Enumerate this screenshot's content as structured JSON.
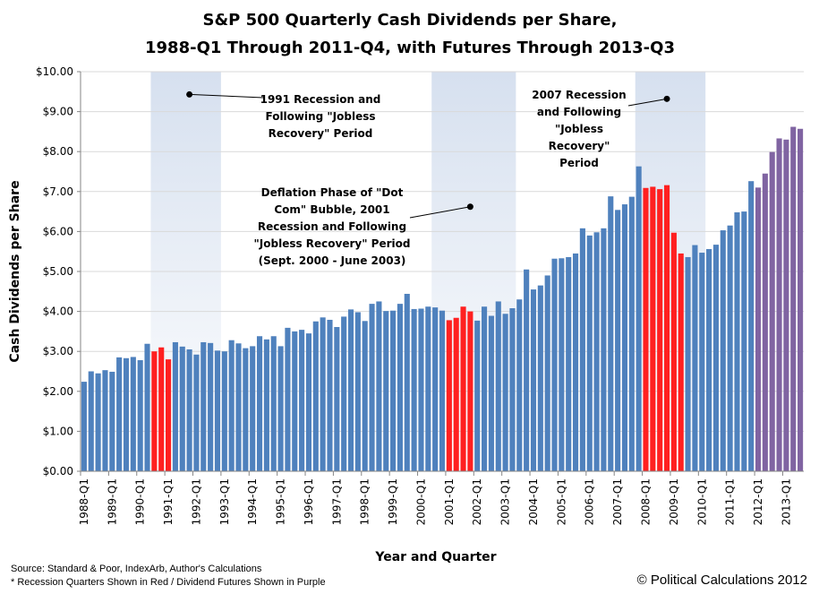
{
  "chart_data": {
    "type": "bar",
    "title": "S&P 500 Quarterly Cash Dividends per Share,",
    "subtitle": "1988-Q1 Through 2011-Q4, with Futures Through 2013-Q3",
    "xlabel": "Year and Quarter",
    "ylabel": "Cash Dividends per Share",
    "ylim": [
      0,
      10
    ],
    "grid": true,
    "yticks": [
      "$0.00",
      "$1.00",
      "$2.00",
      "$3.00",
      "$4.00",
      "$5.00",
      "$6.00",
      "$7.00",
      "$8.00",
      "$9.00",
      "$10.00"
    ],
    "xtick_labels": [
      "1988-Q1",
      "1989-Q1",
      "1990-Q1",
      "1991-Q1",
      "1992-Q1",
      "1993-Q1",
      "1994-Q1",
      "1995-Q1",
      "1996-Q1",
      "1997-Q1",
      "1998-Q1",
      "1999-Q1",
      "2000-Q1",
      "2001-Q1",
      "2002-Q1",
      "2003-Q1",
      "2004-Q1",
      "2005-Q1",
      "2006-Q1",
      "2007-Q1",
      "2008-Q1",
      "2009-Q1",
      "2010-Q1",
      "2011-Q1",
      "2012-Q1",
      "2013-Q1"
    ],
    "start_quarter": "1988-Q1",
    "values": [
      2.24,
      2.5,
      2.45,
      2.53,
      2.49,
      2.85,
      2.83,
      2.86,
      2.78,
      3.19,
      3.0,
      3.1,
      2.8,
      3.23,
      3.12,
      3.05,
      2.92,
      3.23,
      3.21,
      3.02,
      3.0,
      3.28,
      3.2,
      3.08,
      3.13,
      3.38,
      3.3,
      3.38,
      3.13,
      3.59,
      3.5,
      3.54,
      3.45,
      3.75,
      3.85,
      3.79,
      3.61,
      3.87,
      4.05,
      3.98,
      3.76,
      4.19,
      4.25,
      4.01,
      4.02,
      4.19,
      4.44,
      4.06,
      4.07,
      4.12,
      4.1,
      4.02,
      3.78,
      3.84,
      4.12,
      4.0,
      3.77,
      4.12,
      3.89,
      4.25,
      3.94,
      4.08,
      4.3,
      5.05,
      4.55,
      4.65,
      4.9,
      5.32,
      5.33,
      5.36,
      5.45,
      6.08,
      5.9,
      5.98,
      6.08,
      6.88,
      6.54,
      6.68,
      6.87,
      7.63,
      7.09,
      7.12,
      7.06,
      7.16,
      5.97,
      5.45,
      5.36,
      5.66,
      5.47,
      5.56,
      5.67,
      6.03,
      6.15,
      6.48,
      6.5,
      7.26,
      7.1,
      7.45,
      7.99,
      8.33,
      8.3,
      8.62,
      8.57
    ],
    "recession_quarters": [
      "1990-Q3",
      "1990-Q4",
      "1991-Q1",
      "2001-Q1",
      "2001-Q2",
      "2001-Q3",
      "2001-Q4",
      "2008-Q1",
      "2008-Q2",
      "2008-Q3",
      "2008-Q4",
      "2009-Q1",
      "2009-Q2"
    ],
    "futures_start": "2012-Q1",
    "highlight_periods": [
      {
        "start": "1990-Q3",
        "end": "1992-Q4"
      },
      {
        "start": "2000-Q3",
        "end": "2003-Q2"
      },
      {
        "start": "2007-Q4",
        "end": "2010-Q1"
      }
    ],
    "colors": {
      "normal": "#4f81bd",
      "recession": "#ff2020",
      "futures": "#8064a2",
      "highlight_top": "#d6e0ef",
      "highlight_bottom": "#ffffff",
      "grid": "#d9d9d9",
      "axis": "#868686"
    },
    "annotations": [
      {
        "lines": [
          "1991 Recession and",
          "Following \"Jobless",
          "Recovery\" Period"
        ],
        "quarter": "1991-Q4",
        "value": 9.43
      },
      {
        "lines": [
          "Deflation Phase of \"Dot",
          "Com\" Bubble, 2001",
          "Recession and Following",
          "\"Jobless Recovery\" Period",
          "(Sept. 2000 - June 2003)"
        ],
        "quarter": "2001-Q4",
        "value": 6.62
      },
      {
        "lines": [
          "2007 Recession",
          "and Following",
          "\"Jobless",
          "Recovery\"",
          "Period"
        ],
        "quarter": "2008-Q4",
        "value": 9.32
      }
    ]
  },
  "footer": {
    "source": "Source: Standard & Poor, IndexArb, Author's Calculations",
    "note": "* Recession Quarters Shown in Red / Dividend Futures Shown in Purple",
    "copyright": "© Political Calculations 2012"
  }
}
